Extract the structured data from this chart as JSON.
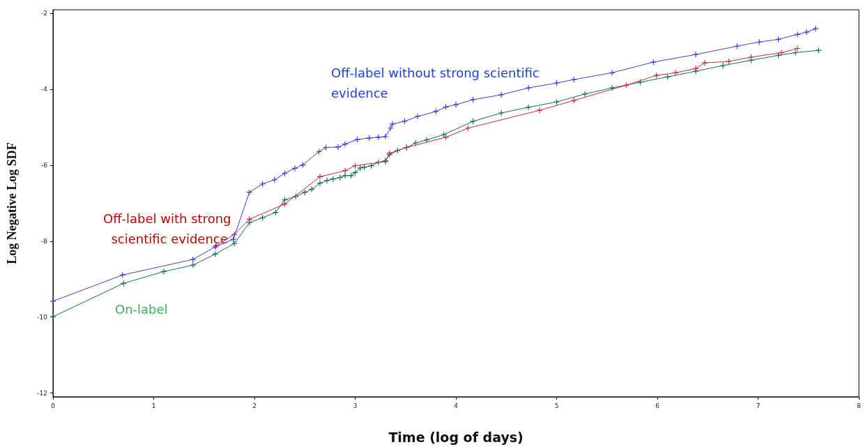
{
  "chart_data": {
    "type": "line",
    "xlabel": "Time (log of days)",
    "ylabel": "Log Negative Log SDF",
    "xlim": [
      0,
      8
    ],
    "xticks": [
      0,
      1,
      2,
      3,
      4,
      5,
      6,
      7,
      8
    ],
    "ylim": [
      -12.1,
      -1.9
    ],
    "yticks": [
      -12,
      -10,
      -8,
      -6,
      -4,
      -2
    ],
    "grid": false,
    "legend": false,
    "marker": "cross",
    "line_style": "solid",
    "series": [
      {
        "name": "Off-label without strong scientific evidence",
        "color": "#3a3ae0",
        "x": [
          0,
          0.69,
          1.39,
          1.61,
          1.79,
          1.95,
          2.08,
          2.2,
          2.3,
          2.4,
          2.48,
          2.64,
          2.71,
          2.83,
          2.9,
          3.02,
          3.14,
          3.23,
          3.3,
          3.35,
          3.37,
          3.49,
          3.62,
          3.8,
          3.9,
          4.0,
          4.17,
          4.45,
          4.72,
          5.0,
          5.17,
          5.55,
          5.96,
          6.38,
          6.79,
          7.01,
          7.2,
          7.39,
          7.48,
          7.57
        ],
        "values": [
          -9.58,
          -8.89,
          -8.48,
          -8.15,
          -7.95,
          -6.71,
          -6.49,
          -6.38,
          -6.21,
          -6.08,
          -5.99,
          -5.64,
          -5.53,
          -5.52,
          -5.44,
          -5.32,
          -5.28,
          -5.26,
          -5.24,
          -5.02,
          -4.91,
          -4.84,
          -4.71,
          -4.58,
          -4.46,
          -4.4,
          -4.27,
          -4.14,
          -3.96,
          -3.83,
          -3.74,
          -3.56,
          -3.28,
          -3.08,
          -2.86,
          -2.75,
          -2.68,
          -2.55,
          -2.49,
          -2.4
        ]
      },
      {
        "name": "Off-label with strong scientific evidence",
        "color": "#c8283c",
        "x": [
          1.62,
          1.8,
          1.95,
          2.3,
          2.65,
          2.9,
          3.0,
          3.3,
          3.34,
          3.51,
          3.9,
          4.12,
          4.83,
          5.17,
          5.69,
          5.99,
          6.18,
          6.38,
          6.47,
          6.71,
          6.93,
          7.23,
          7.39
        ],
        "values": [
          -8.12,
          -7.82,
          -7.42,
          -7.02,
          -6.3,
          -6.14,
          -6.01,
          -5.9,
          -5.68,
          -5.53,
          -5.26,
          -5.02,
          -4.55,
          -4.29,
          -3.89,
          -3.63,
          -3.56,
          -3.45,
          -3.3,
          -3.26,
          -3.15,
          -3.03,
          -2.92
        ]
      },
      {
        "name": "On-label",
        "color": "#0f6e5e",
        "x": [
          0,
          0.7,
          1.1,
          1.39,
          1.61,
          1.8,
          1.95,
          2.08,
          2.21,
          2.3,
          2.41,
          2.5,
          2.57,
          2.65,
          2.72,
          2.78,
          2.85,
          2.9,
          2.96,
          3.0,
          3.05,
          3.09,
          3.16,
          3.23,
          3.3,
          3.34,
          3.42,
          3.51,
          3.6,
          3.71,
          3.88,
          4.17,
          4.45,
          4.72,
          5.0,
          5.28,
          5.55,
          5.83,
          6.1,
          6.38,
          6.65,
          6.93,
          7.2,
          7.37,
          7.6
        ],
        "values": [
          -9.99,
          -9.11,
          -8.8,
          -8.63,
          -8.34,
          -8.06,
          -7.51,
          -7.38,
          -7.24,
          -6.91,
          -6.82,
          -6.71,
          -6.63,
          -6.47,
          -6.4,
          -6.36,
          -6.32,
          -6.27,
          -6.27,
          -6.19,
          -6.07,
          -6.05,
          -6.01,
          -5.92,
          -5.88,
          -5.72,
          -5.61,
          -5.53,
          -5.41,
          -5.33,
          -5.19,
          -4.84,
          -4.62,
          -4.47,
          -4.33,
          -4.12,
          -3.96,
          -3.81,
          -3.67,
          -3.52,
          -3.37,
          -3.23,
          -3.1,
          -3.03,
          -2.97
        ]
      }
    ]
  }
}
